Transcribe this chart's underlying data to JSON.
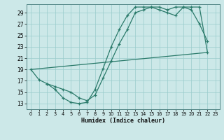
{
  "xlabel": "Humidex (Indice chaleur)",
  "bg_color": "#cce8e8",
  "grid_color": "#99cccc",
  "line_color": "#2a7a6a",
  "xlim": [
    -0.5,
    23.5
  ],
  "ylim": [
    12.0,
    30.5
  ],
  "yticks": [
    13,
    15,
    17,
    19,
    21,
    23,
    25,
    27,
    29
  ],
  "xticks": [
    0,
    1,
    2,
    3,
    4,
    5,
    6,
    7,
    8,
    9,
    10,
    11,
    12,
    13,
    14,
    15,
    16,
    17,
    18,
    19,
    20,
    21,
    22,
    23
  ],
  "line1_x": [
    0,
    1,
    2,
    3,
    4,
    5,
    6,
    7,
    8,
    9,
    10,
    11,
    12,
    13,
    14,
    15,
    16,
    17,
    18,
    19,
    20,
    21,
    22
  ],
  "line1_y": [
    19,
    17.2,
    16.5,
    15.5,
    14.0,
    13.2,
    13.0,
    13.2,
    15.5,
    19.2,
    23.0,
    26.0,
    28.5,
    30.0,
    30.0,
    30.0,
    29.5,
    29.0,
    28.5,
    30.0,
    29.5,
    27.0,
    24.0
  ],
  "line2_x": [
    0,
    22
  ],
  "line2_y": [
    19.0,
    22.0
  ],
  "line3_x": [
    2,
    3,
    4,
    5,
    6,
    7,
    8,
    9,
    10,
    11,
    12,
    13,
    14,
    15,
    16,
    17,
    18,
    19,
    20,
    21,
    22
  ],
  "line3_y": [
    16.5,
    16.0,
    15.5,
    15.0,
    14.0,
    13.5,
    14.5,
    17.5,
    20.5,
    23.5,
    26.0,
    29.0,
    29.5,
    30.0,
    30.0,
    29.5,
    30.0,
    30.0,
    30.0,
    30.0,
    22.0
  ]
}
